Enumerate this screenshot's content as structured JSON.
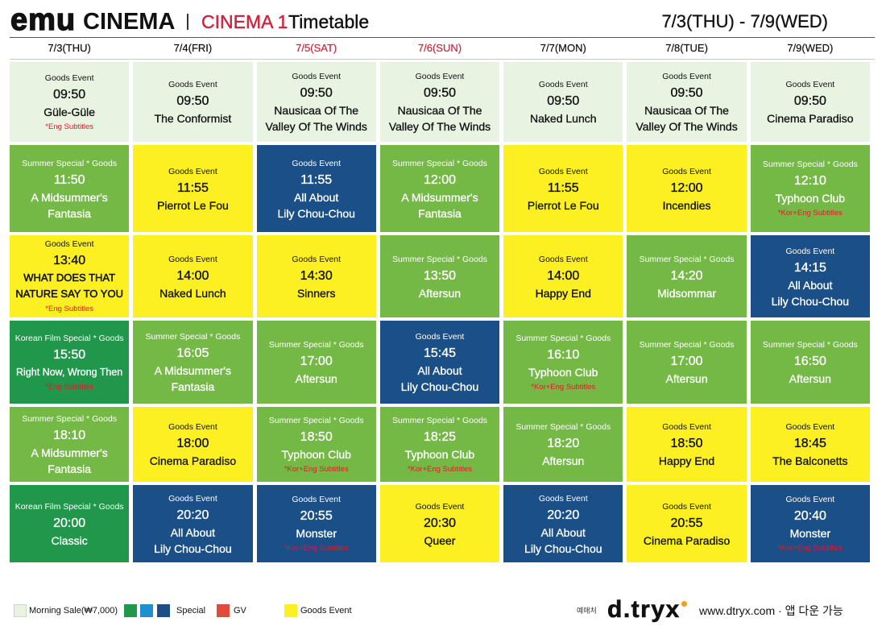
{
  "header": {
    "brand_emu": "emu",
    "brand_cinema": "CINEMA",
    "screen": "CINEMA 1",
    "title": "Timetable",
    "date_range": "7/3(THU) - 7/9(WED)"
  },
  "colors": {
    "mint": "#e8f3e2",
    "green": "#74b845",
    "darkgreen": "#21974b",
    "teal": "#1e8fcf",
    "blue": "#1a4f88",
    "yellow": "#fcf022",
    "gv_red": "#e24a3b",
    "accent_red": "#d2223b",
    "subtitle_red": "#e3192c",
    "logo_orange": "#f39c1f"
  },
  "days": [
    {
      "label": "7/3(THU)",
      "weekend": false,
      "screenings": [
        {
          "color": "mint",
          "category": "Goods Event",
          "time": "09:50",
          "title": [
            "Güle-Güle"
          ],
          "subtitle": "*Eng Subtitles"
        },
        {
          "color": "green",
          "category": "Summer Special * Goods",
          "time": "11:50",
          "title": [
            "A Midsummer's",
            "Fantasia"
          ]
        },
        {
          "color": "yellow",
          "category": "Goods Event",
          "time": "13:40",
          "title": [
            "WHAT DOES THAT",
            "NATURE SAY TO YOU"
          ],
          "subtitle": "*Eng Subtitles"
        },
        {
          "color": "darkgreen",
          "category": "Korean Film Special * Goods",
          "time": "15:50",
          "title": [
            "Right Now, Wrong Then"
          ],
          "subtitle": "*Eng Subtitles"
        },
        {
          "color": "green",
          "category": "Summer Special * Goods",
          "time": "18:10",
          "title": [
            "A Midsummer's",
            "Fantasia"
          ]
        },
        {
          "color": "darkgreen",
          "category": "Korean Film Special * Goods",
          "time": "20:00",
          "title": [
            "Classic"
          ]
        }
      ]
    },
    {
      "label": "7/4(FRI)",
      "weekend": false,
      "screenings": [
        {
          "color": "mint",
          "category": "Goods Event",
          "time": "09:50",
          "title": [
            "The Conformist"
          ]
        },
        {
          "color": "yellow",
          "category": "Goods Event",
          "time": "11:55",
          "title": [
            "Pierrot Le Fou"
          ]
        },
        {
          "color": "yellow",
          "category": "Goods Event",
          "time": "14:00",
          "title": [
            "Naked Lunch"
          ]
        },
        {
          "color": "green",
          "category": "Summer Special * Goods",
          "time": "16:05",
          "title": [
            "A Midsummer's",
            "Fantasia"
          ]
        },
        {
          "color": "yellow",
          "category": "Goods Event",
          "time": "18:00",
          "title": [
            "Cinema Paradiso"
          ]
        },
        {
          "color": "blue",
          "category": "Goods Event",
          "time": "20:20",
          "title": [
            "All About",
            "Lily Chou-Chou"
          ]
        }
      ]
    },
    {
      "label": "7/5(SAT)",
      "weekend": true,
      "screenings": [
        {
          "color": "mint",
          "category": "Goods Event",
          "time": "09:50",
          "title": [
            "Nausicaa Of The",
            "Valley Of The Winds"
          ]
        },
        {
          "color": "blue",
          "category": "Goods Event",
          "time": "11:55",
          "title": [
            "All About",
            "Lily Chou-Chou"
          ]
        },
        {
          "color": "yellow",
          "category": "Goods Event",
          "time": "14:30",
          "title": [
            "Sinners"
          ]
        },
        {
          "color": "green",
          "category": "Summer Special * Goods",
          "time": "17:00",
          "title": [
            "Aftersun"
          ]
        },
        {
          "color": "green",
          "category": "Summer Special * Goods",
          "time": "18:50",
          "title": [
            "Typhoon Club"
          ],
          "subtitle": "*Kor+Eng Subtitles"
        },
        {
          "color": "blue",
          "category": "Goods Event",
          "time": "20:55",
          "title": [
            "Monster"
          ],
          "subtitle": "*Kor+Eng Subtitles"
        }
      ]
    },
    {
      "label": "7/6(SUN)",
      "weekend": true,
      "screenings": [
        {
          "color": "mint",
          "category": "Goods Event",
          "time": "09:50",
          "title": [
            "Nausicaa Of The",
            "Valley Of The Winds"
          ]
        },
        {
          "color": "green",
          "category": "Summer Special * Goods",
          "time": "12:00",
          "title": [
            "A Midsummer's",
            "Fantasia"
          ]
        },
        {
          "color": "green",
          "category": "Summer Special * Goods",
          "time": "13:50",
          "title": [
            "Aftersun"
          ]
        },
        {
          "color": "blue",
          "category": "Goods Event",
          "time": "15:45",
          "title": [
            "All About",
            "Lily Chou-Chou"
          ]
        },
        {
          "color": "green",
          "category": "Summer Special * Goods",
          "time": "18:25",
          "title": [
            "Typhoon Club"
          ],
          "subtitle": "*Kor+Eng Subtitles"
        },
        {
          "color": "yellow",
          "category": "Goods Event",
          "time": "20:30",
          "title": [
            "Queer"
          ]
        }
      ]
    },
    {
      "label": "7/7(MON)",
      "weekend": false,
      "screenings": [
        {
          "color": "mint",
          "category": "Goods Event",
          "time": "09:50",
          "title": [
            "Naked Lunch"
          ]
        },
        {
          "color": "yellow",
          "category": "Goods Event",
          "time": "11:55",
          "title": [
            "Pierrot Le Fou"
          ]
        },
        {
          "color": "yellow",
          "category": "Goods Event",
          "time": "14:00",
          "title": [
            "Happy End"
          ]
        },
        {
          "color": "green",
          "category": "Summer Special * Goods",
          "time": "16:10",
          "title": [
            "Typhoon Club"
          ],
          "subtitle": "*Kor+Eng Subtitles"
        },
        {
          "color": "green",
          "category": "Summer Special * Goods",
          "time": "18:20",
          "title": [
            "Aftersun"
          ]
        },
        {
          "color": "blue",
          "category": "Goods Event",
          "time": "20:20",
          "title": [
            "All About",
            "Lily Chou-Chou"
          ]
        }
      ]
    },
    {
      "label": "7/8(TUE)",
      "weekend": false,
      "screenings": [
        {
          "color": "mint",
          "category": "Goods Event",
          "time": "09:50",
          "title": [
            "Nausicaa Of The",
            "Valley Of The Winds"
          ]
        },
        {
          "color": "yellow",
          "category": "Goods Event",
          "time": "12:00",
          "title": [
            "Incendies"
          ]
        },
        {
          "color": "green",
          "category": "Summer Special * Goods",
          "time": "14:20",
          "title": [
            "Midsommar"
          ]
        },
        {
          "color": "green",
          "category": "Summer Special * Goods",
          "time": "17:00",
          "title": [
            "Aftersun"
          ]
        },
        {
          "color": "yellow",
          "category": "Goods Event",
          "time": "18:50",
          "title": [
            "Happy End"
          ]
        },
        {
          "color": "yellow",
          "category": "Goods Event",
          "time": "20:55",
          "title": [
            "Cinema Paradiso"
          ]
        }
      ]
    },
    {
      "label": "7/9(WED)",
      "weekend": false,
      "screenings": [
        {
          "color": "mint",
          "category": "Goods Event",
          "time": "09:50",
          "title": [
            "Cinema Paradiso"
          ]
        },
        {
          "color": "green",
          "category": "Summer Special * Goods",
          "time": "12:10",
          "title": [
            "Typhoon Club"
          ],
          "subtitle": "*Kor+Eng Subtitles"
        },
        {
          "color": "blue",
          "category": "Goods Event",
          "time": "14:15",
          "title": [
            "All About",
            "Lily Chou-Chou"
          ]
        },
        {
          "color": "green",
          "category": "Summer Special * Goods",
          "time": "16:50",
          "title": [
            "Aftersun"
          ]
        },
        {
          "color": "yellow",
          "category": "Goods Event",
          "time": "18:45",
          "title": [
            "The Balconetts"
          ]
        },
        {
          "color": "blue",
          "category": "Goods Event",
          "time": "20:40",
          "title": [
            "Monster"
          ],
          "subtitle": "*Kor+Eng Subtitles"
        }
      ]
    }
  ],
  "legend": {
    "morning_sale": "Morning Sale(₩7,000)",
    "special": "Special",
    "gv": "GV",
    "goods_event": "Goods Event"
  },
  "footer": {
    "booking_label": "예매처",
    "booking_logo": "d.tryx",
    "website": "www.dtryx.com · 앱 다운 가능"
  }
}
